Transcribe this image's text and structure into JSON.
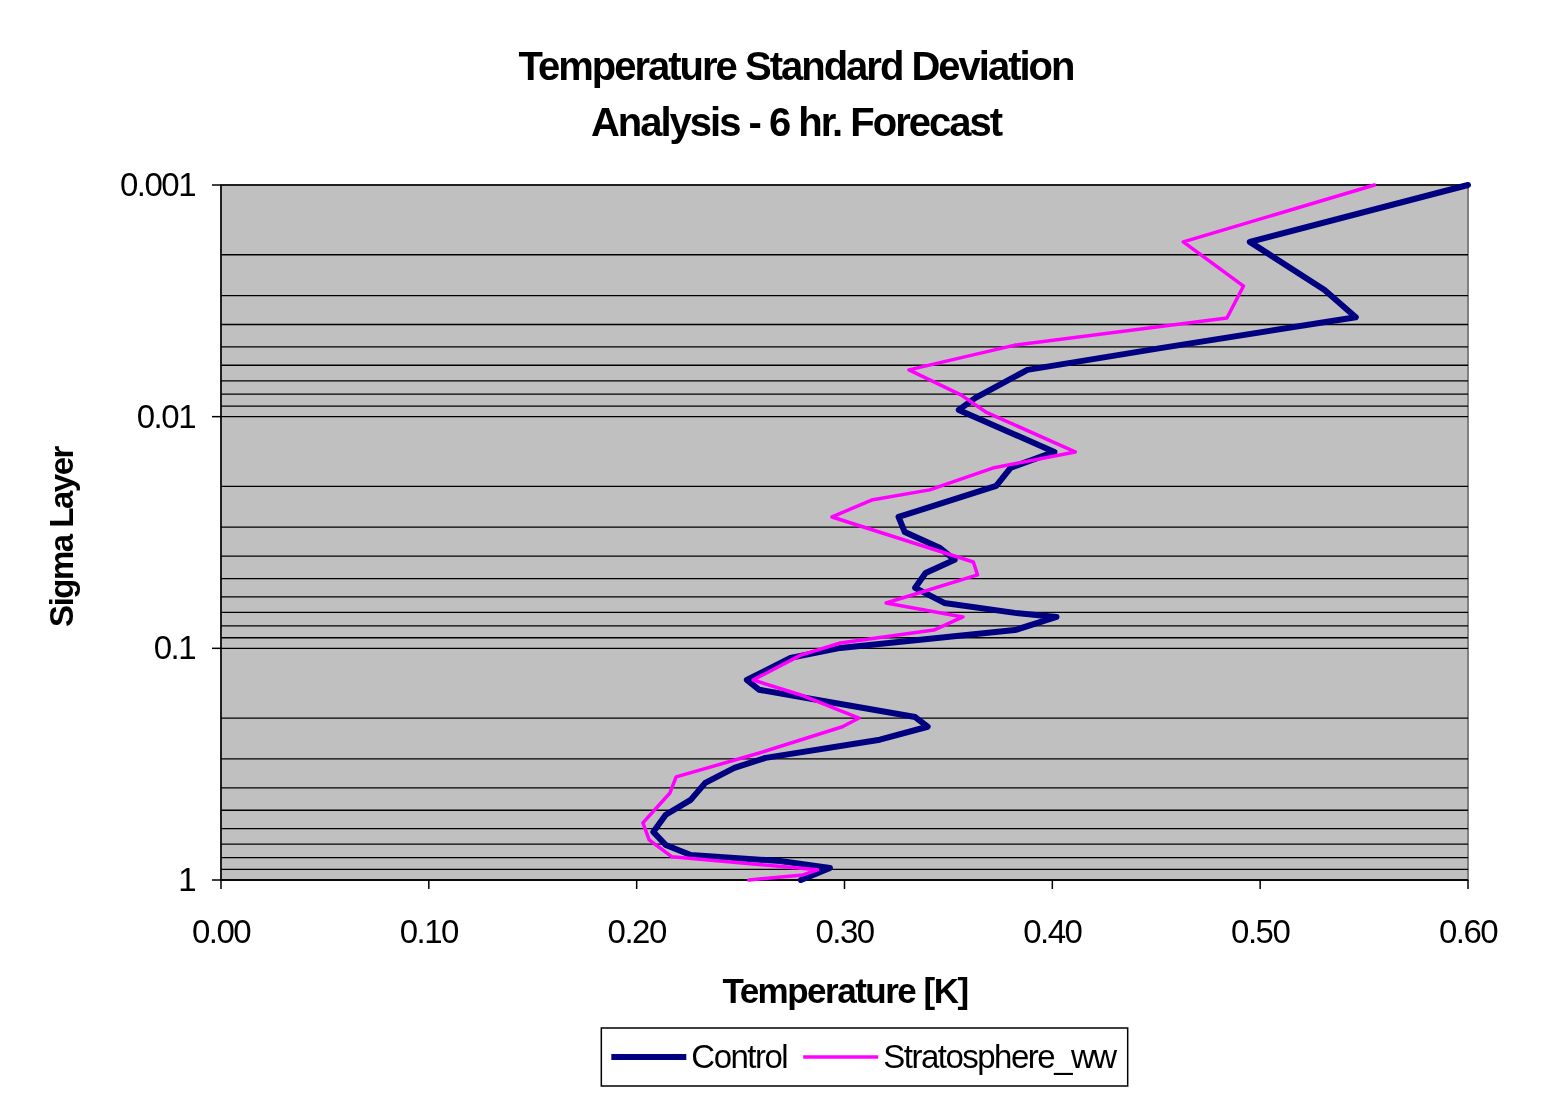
{
  "chart_data": {
    "type": "line",
    "title": "Temperature Standard Deviation\nAnalysis - 6 hr. Forecast",
    "xlabel": "Temperature [K]",
    "ylabel": "Sigma Layer",
    "xlim": [
      0,
      0.6
    ],
    "xticks": [
      {
        "value": 0,
        "label": "0.00"
      },
      {
        "value": 0.1,
        "label": "0.10"
      },
      {
        "value": 0.2,
        "label": "0.20"
      },
      {
        "value": 0.3,
        "label": "0.30"
      },
      {
        "value": 0.4,
        "label": "0.40"
      },
      {
        "value": 0.5,
        "label": "0.50"
      },
      {
        "value": 0.6,
        "label": "0.60"
      }
    ],
    "ylim": [
      1,
      0.001
    ],
    "log": "y",
    "yticks": [
      0.001,
      {
        "value": 0.002,
        "label": null
      },
      {
        "value": 0.003,
        "label": null
      },
      {
        "value": 0.004,
        "label": null
      },
      {
        "value": 0.005,
        "label": null
      },
      {
        "value": 0.006,
        "label": null
      },
      {
        "value": 0.007,
        "label": null
      },
      {
        "value": 0.008,
        "label": null
      },
      {
        "value": 0.009,
        "label": null
      },
      0.01,
      {
        "value": 0.02,
        "label": null
      },
      {
        "value": 0.03,
        "label": null
      },
      {
        "value": 0.04,
        "label": null
      },
      {
        "value": 0.05,
        "label": null
      },
      {
        "value": 0.06,
        "label": null
      },
      {
        "value": 0.07,
        "label": null
      },
      {
        "value": 0.08,
        "label": null
      },
      {
        "value": 0.09,
        "label": null
      },
      0.1,
      {
        "value": 0.2,
        "label": null
      },
      {
        "value": 0.3,
        "label": null
      },
      {
        "value": 0.4,
        "label": null
      },
      {
        "value": 0.5,
        "label": null
      },
      {
        "value": 0.6,
        "label": null
      },
      {
        "value": 0.7,
        "label": null
      },
      {
        "value": 0.8,
        "label": null
      },
      {
        "value": 0.9,
        "label": null
      },
      1
    ],
    "grid": "y",
    "legend": "bottom",
    "marker": "none",
    "line_style": "solid",
    "series": [
      {
        "name": "Control",
        "color": "#000080",
        "x": [
          0.6,
          0.495,
          0.531,
          0.546,
          0.452,
          0.388,
          0.363,
          0.355,
          0.401,
          0.38,
          0.373,
          0.326,
          0.329,
          0.346,
          0.353,
          0.339,
          0.334,
          0.348,
          0.382,
          0.402,
          0.382,
          0.298,
          0.274,
          0.253,
          0.259,
          0.303,
          0.334,
          0.34,
          0.317,
          0.262,
          0.247,
          0.233,
          0.226,
          0.214,
          0.208,
          0.214,
          0.226,
          0.269,
          0.293,
          0.279
        ],
        "values": [
          0.001,
          0.00176,
          0.00284,
          0.00372,
          0.00506,
          0.00628,
          0.0083,
          0.00935,
          0.0142,
          0.0166,
          0.0199,
          0.0271,
          0.0315,
          0.0369,
          0.0415,
          0.0473,
          0.0548,
          0.0637,
          0.0703,
          0.0732,
          0.0834,
          0.0996,
          0.11,
          0.137,
          0.151,
          0.177,
          0.198,
          0.218,
          0.248,
          0.297,
          0.328,
          0.381,
          0.451,
          0.523,
          0.62,
          0.706,
          0.78,
          0.828,
          0.887,
          1
        ]
      },
      {
        "name": "Stratosphere_ww",
        "color": "#ff00ff",
        "x": [
          0.555,
          0.463,
          0.492,
          0.484,
          0.382,
          0.331,
          0.356,
          0.368,
          0.411,
          0.372,
          0.341,
          0.313,
          0.294,
          0.362,
          0.364,
          0.32,
          0.357,
          0.343,
          0.298,
          0.279,
          0.256,
          0.279,
          0.307,
          0.299,
          0.259,
          0.219,
          0.216,
          0.203,
          0.206,
          0.217,
          0.287,
          0.28,
          0.254
        ],
        "values": [
          0.001,
          0.00176,
          0.00273,
          0.00375,
          0.00491,
          0.00628,
          0.00805,
          0.00955,
          0.0142,
          0.0166,
          0.0207,
          0.0229,
          0.0271,
          0.0424,
          0.0482,
          0.0637,
          0.0732,
          0.0834,
          0.0948,
          0.107,
          0.137,
          0.159,
          0.2,
          0.218,
          0.283,
          0.359,
          0.421,
          0.567,
          0.671,
          0.794,
          0.904,
          0.951,
          1
        ]
      }
    ]
  }
}
